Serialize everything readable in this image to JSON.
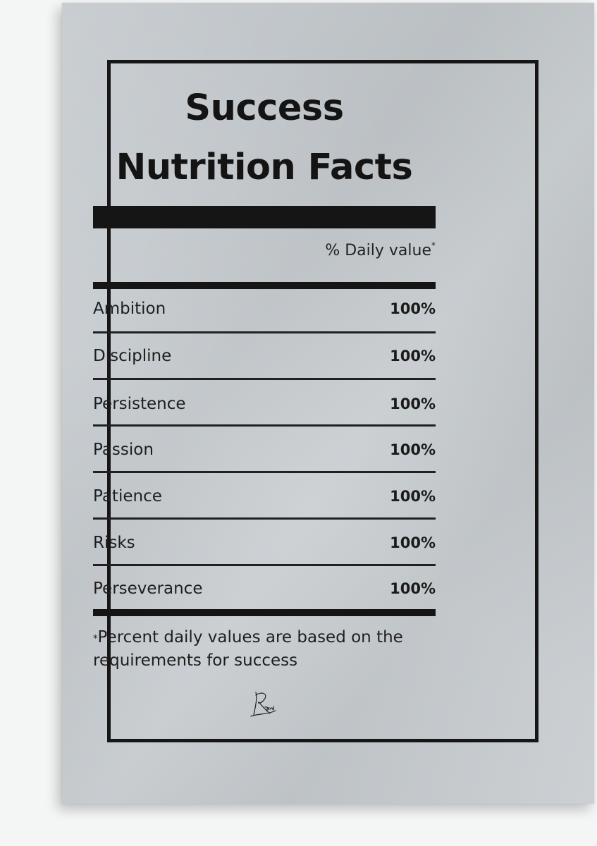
{
  "poster": {
    "title_line1": "Success",
    "title_line2": "Nutrition Facts",
    "daily_value_header": "% Daily value",
    "daily_value_marker": "*",
    "rows": [
      {
        "name": "Ambition",
        "value": "100%"
      },
      {
        "name": "Discipline",
        "value": "100%"
      },
      {
        "name": "Persistence",
        "value": "100%"
      },
      {
        "name": "Passion",
        "value": "100%"
      },
      {
        "name": "Patience",
        "value": "100%"
      },
      {
        "name": "Risks",
        "value": "100%"
      },
      {
        "name": "Perseverance",
        "value": "100%"
      }
    ],
    "footnote_marker": "*",
    "footnote": "Percent daily values are based on the requirements for success",
    "signature_text": "Kari"
  },
  "colors": {
    "paper": "#c7ccd0",
    "ink": "#151515",
    "background": "#f4f5f5"
  }
}
